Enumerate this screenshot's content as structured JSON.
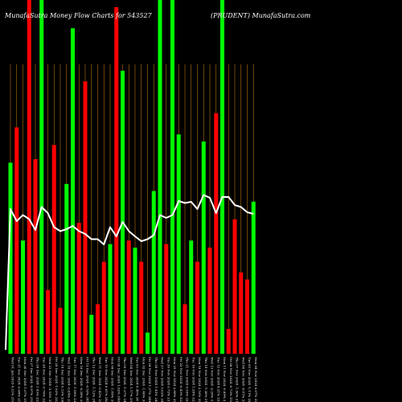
{
  "chart_data": {
    "type": "bar",
    "title_left": "MunafaSutra Money Flow Charts for 543527",
    "title_right": "(PRUDENT) MunafaSutra.com",
    "colors": {
      "up": "#00ff00",
      "down": "#ff0000",
      "line": "#ffffff",
      "grid": "#b8730a",
      "background": "#000000"
    },
    "grid": true,
    "ylim": [
      0,
      100
    ],
    "categories": [
      "Wed 01 Jan 2025 0.21% 2161.45",
      "Tue 31 Dec 2024 -0.98% 2156.90",
      "Mon 30 Dec 2024 1.67% 2178.20",
      "Fri 27 Dec 2024 -4.97% 2142.40",
      "Thu 26 Dec 2024 1.43% 2254.75",
      "Tue 24 Dec 2024 -0.76% 2222.95",
      "Mon 23 Dec 2024 -3.55% 2239.90",
      "Fri 20 Dec 2024 -1.63% 2322.25",
      "Thu 19 Dec 2024 0.12% 2360.75",
      "Wed 18 Dec 2024 -0.84% 2357.95",
      "Tue 17 Dec 2024 -1.06% 2377.90",
      "Mon 16 Dec 2024 -0.39% 2403.45",
      "Fri 13 Dec 2024 -0.53% 2412.85",
      "Thu 12 Dec 2024 -1.12% 2425.75",
      "Wed 11 Dec 2024 -0.42% 2453.25",
      "Tue 10 Dec 2024 0.61% 2463.55",
      "Mon 09 Dec 2024 -1.85% 2448.55",
      "Fri 06 Dec 2024 1.02% 2494.70",
      "Thu 05 Dec 2024 -1.37% 2469.55",
      "Wed 04 Dec 2024 1.17% 2503.90",
      "Tue 03 Dec 2024 0.48% 2474.90",
      "Mon 02 Dec 2024 -1.46% 2463.15",
      "Fri 29 Nov 2024 1.37% 2499.60",
      "Thu 28 Nov 2024 1.42% 2465.80",
      "Wed 27 Nov 2024 5.03% 2431.35",
      "Tue 26 Nov 2024 0.72% 2314.95",
      "Mon 25 Nov 2024 2.68% 2298.45",
      "Fri 22 Nov 2024 -0.43% 2238.45",
      "Thu 21 Nov 2024 0.55% 2248.20",
      "Tue 19 Nov 2024 1.28% 2235.95",
      "Mon 18 Nov 2024 2.16% 2207.70",
      "Thu 14 Nov 2024 -1.38% 2160.95",
      "Wed 13 Nov 2024 -2.20% 2191.20",
      "Tue 12 Nov 2024 4.21% 2240.45",
      "Mon 11 Nov 2024 -0.89% 2149.95",
      "Fri 08 Nov 2024 -0.73% 2169.35",
      "Thu 07 Nov 2024 -1.50% 2185.35",
      "Wed 06 Nov 2024 -0.81% 2218.75",
      "Tue 05 Nov 2024 -1.11% 2236.75",
      "Mon 04 Nov 2024 0.07% 2261.85"
    ],
    "bars": [
      {
        "value": 54,
        "color": "green"
      },
      {
        "value": 64,
        "color": "red"
      },
      {
        "value": 32,
        "color": "green"
      },
      {
        "value": 100,
        "color": "red"
      },
      {
        "value": 55,
        "color": "red"
      },
      {
        "value": 100,
        "color": "green"
      },
      {
        "value": 18,
        "color": "red"
      },
      {
        "value": 59,
        "color": "red"
      },
      {
        "value": 13,
        "color": "red"
      },
      {
        "value": 48,
        "color": "green"
      },
      {
        "value": 92,
        "color": "green"
      },
      {
        "value": 37,
        "color": "red"
      },
      {
        "value": 77,
        "color": "red"
      },
      {
        "value": 11,
        "color": "green"
      },
      {
        "value": 14,
        "color": "red"
      },
      {
        "value": 26,
        "color": "red"
      },
      {
        "value": 31,
        "color": "green"
      },
      {
        "value": 98,
        "color": "red"
      },
      {
        "value": 80,
        "color": "green"
      },
      {
        "value": 32,
        "color": "red"
      },
      {
        "value": 30,
        "color": "green"
      },
      {
        "value": 26,
        "color": "red"
      },
      {
        "value": 6,
        "color": "green"
      },
      {
        "value": 46,
        "color": "green"
      },
      {
        "value": 100,
        "color": "green"
      },
      {
        "value": 31,
        "color": "red"
      },
      {
        "value": 100,
        "color": "green"
      },
      {
        "value": 62,
        "color": "green"
      },
      {
        "value": 14,
        "color": "red"
      },
      {
        "value": 32,
        "color": "green"
      },
      {
        "value": 26,
        "color": "red"
      },
      {
        "value": 60,
        "color": "green"
      },
      {
        "value": 30,
        "color": "red"
      },
      {
        "value": 68,
        "color": "red"
      },
      {
        "value": 100,
        "color": "green"
      },
      {
        "value": 7,
        "color": "red"
      },
      {
        "value": 38,
        "color": "red"
      },
      {
        "value": 23,
        "color": "red"
      },
      {
        "value": 21,
        "color": "red"
      },
      {
        "value": 43,
        "color": "green"
      }
    ],
    "price_line": [
      2160,
      2130,
      2145,
      2135,
      2108,
      2165,
      2150,
      2115,
      2105,
      2110,
      2118,
      2105,
      2098,
      2085,
      2085,
      2072,
      2115,
      2092,
      2128,
      2105,
      2092,
      2080,
      2085,
      2095,
      2145,
      2138,
      2145,
      2180,
      2175,
      2178,
      2160,
      2195,
      2188,
      2150,
      2190,
      2190,
      2170,
      2165,
      2152,
      2148
    ]
  }
}
